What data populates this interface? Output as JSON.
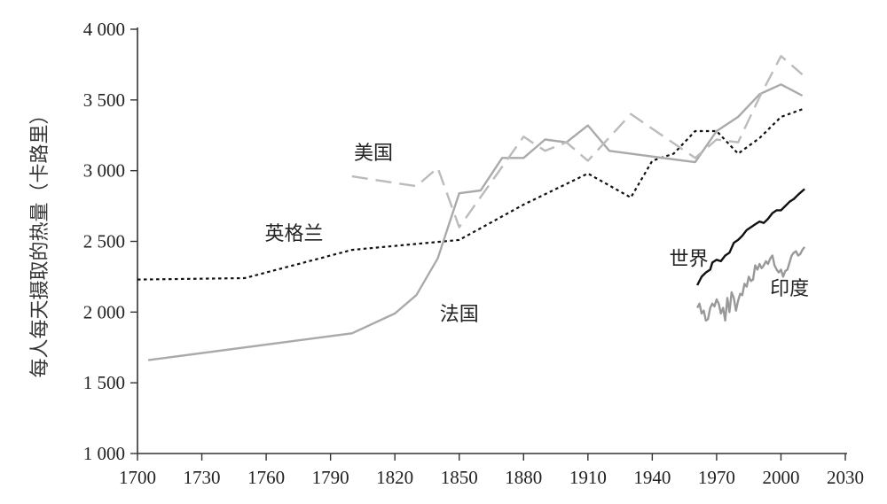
{
  "chart_data": {
    "type": "line",
    "title": "",
    "xlabel": "",
    "ylabel": "每人每天摄取的热量（卡路里）",
    "xlim": [
      1700,
      2030
    ],
    "ylim": [
      1000,
      4000
    ],
    "x_ticks": [
      1700,
      1730,
      1760,
      1790,
      1820,
      1850,
      1880,
      1910,
      1940,
      1970,
      2000,
      2030
    ],
    "x_tick_labels": [
      "1700",
      "1730",
      "1760",
      "1790",
      "1820",
      "1850",
      "1880",
      "1910",
      "1940",
      "1970",
      "2000",
      "2030"
    ],
    "y_ticks": [
      1000,
      1500,
      2000,
      2500,
      3000,
      3500,
      4000
    ],
    "y_tick_labels": [
      "1 000",
      "1 500",
      "2 000",
      "2 500",
      "3 000",
      "3 500",
      "4 000"
    ],
    "grid": false,
    "legend": "none (series labeled directly on chart)",
    "series": [
      {
        "name": "英格兰",
        "style": "dotted",
        "color": "#111111",
        "points": [
          [
            1700,
            2230
          ],
          [
            1750,
            2240
          ],
          [
            1800,
            2440
          ],
          [
            1850,
            2510
          ],
          [
            1880,
            2760
          ],
          [
            1910,
            2980
          ],
          [
            1930,
            2810
          ],
          [
            1940,
            3070
          ],
          [
            1950,
            3120
          ],
          [
            1960,
            3280
          ],
          [
            1970,
            3280
          ],
          [
            1980,
            3120
          ],
          [
            1990,
            3230
          ],
          [
            2000,
            3380
          ],
          [
            2011,
            3440
          ]
        ]
      },
      {
        "name": "法国",
        "style": "solid",
        "color": "#aaaaaa",
        "points": [
          [
            1705,
            1660
          ],
          [
            1800,
            1850
          ],
          [
            1820,
            1990
          ],
          [
            1830,
            2120
          ],
          [
            1840,
            2380
          ],
          [
            1850,
            2840
          ],
          [
            1860,
            2860
          ],
          [
            1870,
            3090
          ],
          [
            1880,
            3090
          ],
          [
            1890,
            3220
          ],
          [
            1900,
            3200
          ],
          [
            1910,
            3320
          ],
          [
            1920,
            3140
          ],
          [
            1960,
            3060
          ],
          [
            1970,
            3280
          ],
          [
            1980,
            3380
          ],
          [
            1990,
            3540
          ],
          [
            2000,
            3610
          ],
          [
            2010,
            3530
          ]
        ]
      },
      {
        "name": "美国",
        "style": "dashed",
        "color": "#bbbbbb",
        "points": [
          [
            1800,
            2960
          ],
          [
            1830,
            2890
          ],
          [
            1840,
            3020
          ],
          [
            1850,
            2600
          ],
          [
            1880,
            3240
          ],
          [
            1890,
            3140
          ],
          [
            1900,
            3200
          ],
          [
            1910,
            3070
          ],
          [
            1930,
            3400
          ],
          [
            1960,
            3090
          ],
          [
            1970,
            3220
          ],
          [
            1980,
            3200
          ],
          [
            1990,
            3520
          ],
          [
            2000,
            3810
          ],
          [
            2010,
            3680
          ]
        ]
      },
      {
        "name": "世界",
        "style": "solid",
        "color": "#111111",
        "points": [
          [
            1961,
            2190
          ],
          [
            1963,
            2250
          ],
          [
            1965,
            2280
          ],
          [
            1967,
            2300
          ],
          [
            1968,
            2350
          ],
          [
            1970,
            2370
          ],
          [
            1972,
            2360
          ],
          [
            1974,
            2400
          ],
          [
            1976,
            2420
          ],
          [
            1978,
            2490
          ],
          [
            1980,
            2510
          ],
          [
            1982,
            2540
          ],
          [
            1984,
            2580
          ],
          [
            1986,
            2600
          ],
          [
            1988,
            2620
          ],
          [
            1990,
            2640
          ],
          [
            1992,
            2630
          ],
          [
            1994,
            2660
          ],
          [
            1996,
            2700
          ],
          [
            1998,
            2720
          ],
          [
            2000,
            2720
          ],
          [
            2002,
            2750
          ],
          [
            2004,
            2780
          ],
          [
            2006,
            2800
          ],
          [
            2008,
            2830
          ],
          [
            2011,
            2870
          ]
        ]
      },
      {
        "name": "印度",
        "style": "solid",
        "color": "#999999",
        "points": [
          [
            1961,
            2030
          ],
          [
            1962,
            2060
          ],
          [
            1963,
            1990
          ],
          [
            1964,
            2010
          ],
          [
            1965,
            1940
          ],
          [
            1966,
            1950
          ],
          [
            1967,
            2030
          ],
          [
            1968,
            2060
          ],
          [
            1969,
            2040
          ],
          [
            1970,
            2090
          ],
          [
            1971,
            2060
          ],
          [
            1972,
            1990
          ],
          [
            1973,
            2030
          ],
          [
            1974,
            1940
          ],
          [
            1975,
            2100
          ],
          [
            1976,
            2000
          ],
          [
            1977,
            2140
          ],
          [
            1978,
            2100
          ],
          [
            1979,
            2010
          ],
          [
            1980,
            2080
          ],
          [
            1981,
            2130
          ],
          [
            1982,
            2120
          ],
          [
            1983,
            2200
          ],
          [
            1984,
            2180
          ],
          [
            1985,
            2250
          ],
          [
            1986,
            2220
          ],
          [
            1987,
            2230
          ],
          [
            1988,
            2330
          ],
          [
            1989,
            2300
          ],
          [
            1990,
            2340
          ],
          [
            1991,
            2310
          ],
          [
            1992,
            2330
          ],
          [
            1993,
            2360
          ],
          [
            1994,
            2340
          ],
          [
            1995,
            2380
          ],
          [
            1996,
            2400
          ],
          [
            1997,
            2330
          ],
          [
            1998,
            2300
          ],
          [
            1999,
            2280
          ],
          [
            2000,
            2300
          ],
          [
            2001,
            2250
          ],
          [
            2002,
            2290
          ],
          [
            2003,
            2300
          ],
          [
            2004,
            2350
          ],
          [
            2005,
            2400
          ],
          [
            2006,
            2420
          ],
          [
            2007,
            2430
          ],
          [
            2008,
            2400
          ],
          [
            2009,
            2410
          ],
          [
            2010,
            2440
          ],
          [
            2011,
            2460
          ]
        ]
      }
    ],
    "annotations": [
      {
        "text": "美国",
        "x": 1810,
        "y": 3080
      },
      {
        "text": "英格兰",
        "x": 1773,
        "y": 2510
      },
      {
        "text": "法国",
        "x": 1850,
        "y": 1940
      },
      {
        "text": "世界",
        "x": 1957,
        "y": 2330
      },
      {
        "text": "印度",
        "x": 2004,
        "y": 2120
      }
    ]
  }
}
